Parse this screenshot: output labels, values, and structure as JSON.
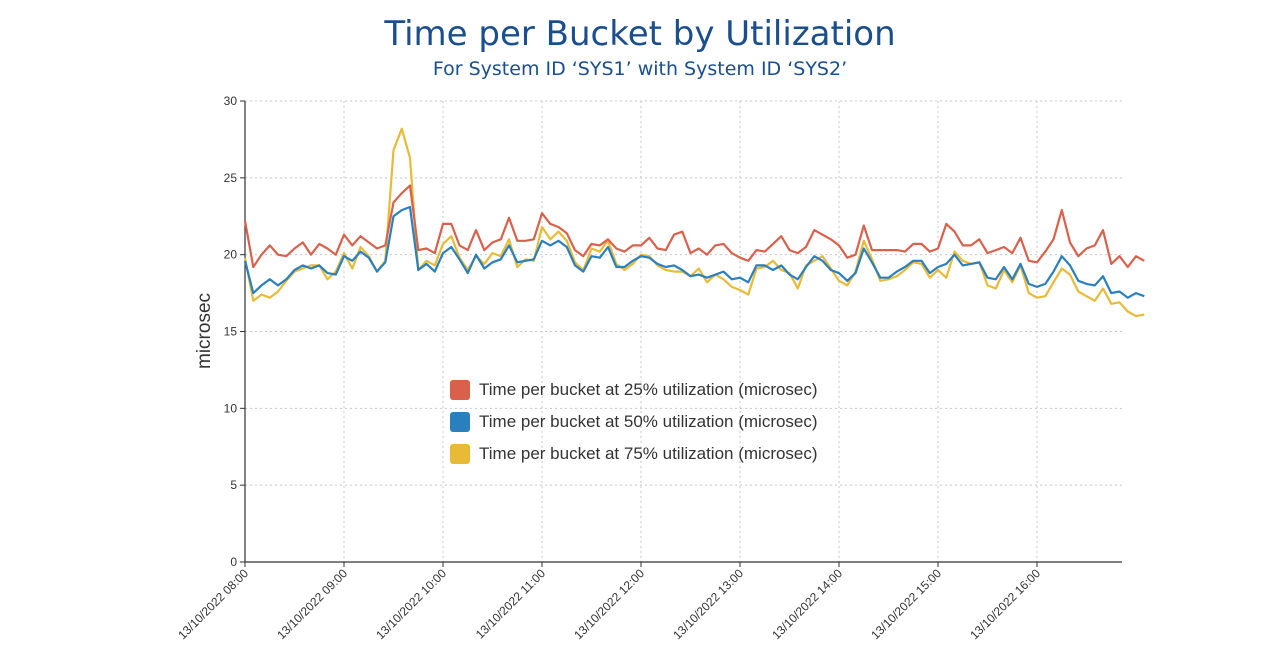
{
  "title": "Time per Bucket by Utilization",
  "subtitle": "For System ID ‘SYS1’ with System ID ‘SYS2’",
  "chart_data": {
    "type": "line",
    "ylabel": "microsec",
    "ylim": [
      0,
      30
    ],
    "yticks": [
      0,
      5,
      10,
      15,
      20,
      25,
      30
    ],
    "xlabels": [
      "13/10/2022 08:00",
      "13/10/2022 09:00",
      "13/10/2022 10:00",
      "13/10/2022 11:00",
      "13/10/2022 12:00",
      "13/10/2022 13:00",
      "13/10/2022 14:00",
      "13/10/2022 15:00",
      "13/10/2022 16:00"
    ],
    "x_interval_minutes": 5,
    "grid": true,
    "legend_position": "center",
    "series": [
      {
        "name": "Time per bucket at 25% utilization (microsec)",
        "color": "#d9614c",
        "values": [
          22.2,
          19.2,
          20.0,
          20.6,
          20.0,
          19.9,
          20.4,
          20.8,
          20.0,
          20.7,
          20.4,
          20.0,
          21.3,
          20.6,
          21.2,
          20.8,
          20.4,
          20.6,
          23.4,
          24.0,
          24.5,
          20.3,
          20.4,
          20.1,
          22.0,
          22.0,
          20.6,
          20.3,
          21.6,
          20.3,
          20.8,
          21.0,
          22.4,
          20.9,
          20.9,
          21.0,
          22.7,
          22.0,
          21.8,
          21.4,
          20.3,
          19.9,
          20.7,
          20.6,
          21.0,
          20.4,
          20.2,
          20.6,
          20.6,
          21.1,
          20.4,
          20.3,
          21.3,
          21.5,
          20.1,
          20.4,
          20.0,
          20.6,
          20.7,
          20.1,
          19.8,
          19.6,
          20.3,
          20.2,
          20.7,
          21.2,
          20.3,
          20.1,
          20.5,
          21.6,
          21.3,
          21.0,
          20.6,
          19.8,
          20.0,
          21.9,
          20.3,
          20.3,
          20.3,
          20.3,
          20.2,
          20.7,
          20.7,
          20.2,
          20.4,
          22.0,
          21.5,
          20.6,
          20.6,
          21.0,
          20.1,
          20.3,
          20.5,
          20.1,
          21.1,
          19.6,
          19.5,
          20.2,
          21.0,
          22.9,
          20.8,
          19.9,
          20.4,
          20.6,
          21.6,
          19.4,
          19.9,
          19.2,
          19.9,
          19.6
        ]
      },
      {
        "name": "Time per bucket at 50% utilization (microsec)",
        "color": "#2a7fbd",
        "values": [
          19.6,
          17.5,
          18.0,
          18.4,
          18.0,
          18.4,
          19.0,
          19.3,
          19.1,
          19.3,
          18.8,
          18.7,
          19.9,
          19.6,
          20.2,
          19.8,
          18.9,
          19.5,
          22.5,
          22.9,
          23.1,
          19.0,
          19.4,
          18.9,
          20.1,
          20.5,
          19.7,
          18.8,
          20.0,
          19.1,
          19.5,
          19.7,
          20.6,
          19.5,
          19.6,
          19.7,
          20.9,
          20.6,
          20.9,
          20.5,
          19.3,
          18.9,
          19.9,
          19.8,
          20.5,
          19.2,
          19.2,
          19.6,
          19.9,
          19.8,
          19.4,
          19.2,
          19.3,
          19.0,
          18.6,
          18.7,
          18.5,
          18.7,
          18.9,
          18.4,
          18.5,
          18.2,
          19.3,
          19.3,
          19.0,
          19.3,
          18.7,
          18.4,
          19.2,
          19.9,
          19.6,
          19.0,
          18.8,
          18.3,
          18.8,
          20.4,
          19.5,
          18.5,
          18.5,
          18.9,
          19.2,
          19.6,
          19.6,
          18.8,
          19.2,
          19.4,
          20.0,
          19.3,
          19.4,
          19.5,
          18.5,
          18.4,
          19.2,
          18.4,
          19.4,
          18.1,
          17.9,
          18.1,
          18.9,
          19.9,
          19.3,
          18.3,
          18.1,
          18.0,
          18.6,
          17.5,
          17.6,
          17.2,
          17.5,
          17.3
        ]
      },
      {
        "name": "Time per bucket at 75% utilization (microsec)",
        "color": "#e8bb37",
        "values": [
          19.8,
          17.0,
          17.4,
          17.2,
          17.6,
          18.3,
          18.9,
          19.1,
          19.3,
          19.3,
          18.4,
          18.9,
          20.1,
          19.1,
          20.5,
          19.9,
          18.9,
          19.6,
          26.8,
          28.2,
          26.3,
          19.0,
          19.6,
          19.3,
          20.7,
          21.2,
          19.8,
          19.0,
          19.9,
          19.4,
          20.1,
          19.9,
          21.0,
          19.2,
          19.7,
          19.6,
          21.8,
          21.0,
          21.5,
          20.9,
          19.5,
          19.0,
          20.4,
          20.2,
          20.9,
          19.4,
          19.0,
          19.4,
          20.0,
          19.9,
          19.3,
          19.0,
          18.9,
          18.9,
          18.6,
          19.1,
          18.2,
          18.7,
          18.4,
          17.9,
          17.7,
          17.4,
          19.1,
          19.2,
          19.6,
          19.0,
          18.8,
          17.8,
          19.3,
          19.6,
          19.9,
          19.1,
          18.3,
          18.0,
          18.9,
          20.9,
          19.7,
          18.3,
          18.4,
          18.6,
          19.0,
          19.5,
          19.4,
          18.5,
          19.0,
          18.5,
          20.2,
          19.6,
          19.4,
          19.5,
          18.0,
          17.8,
          19.0,
          18.2,
          19.3,
          17.5,
          17.2,
          17.3,
          18.2,
          19.1,
          18.7,
          17.6,
          17.3,
          17.0,
          17.8,
          16.8,
          16.9,
          16.3,
          16.0,
          16.1
        ]
      }
    ]
  }
}
